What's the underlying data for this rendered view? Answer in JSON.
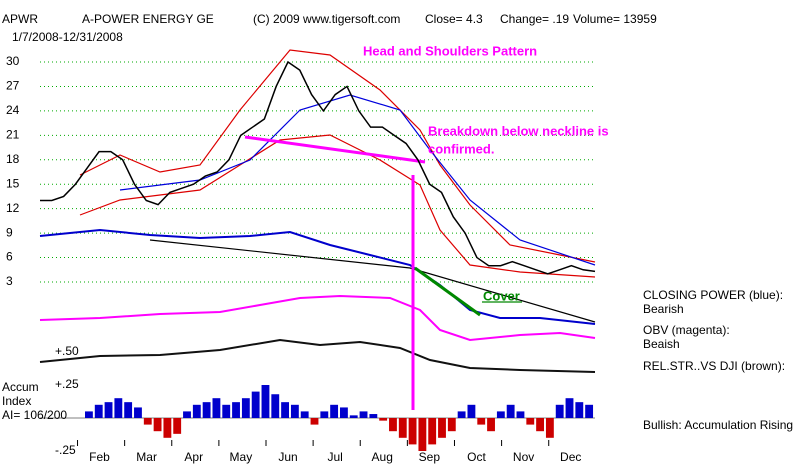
{
  "header": {
    "symbol": "APWR",
    "name": "A-POWER ENERGY GE",
    "copyright": "(C) 2009 www.tigersoft.com",
    "close": "Close=  4.3",
    "change": "Change= .19",
    "volume": "Volume= 13959",
    "period": "1/7/2008-12/31/2008"
  },
  "chart_data": [
    {
      "type": "line",
      "months": [
        "Feb",
        "Mar",
        "Apr",
        "May",
        "Jun",
        "Jul",
        "Aug",
        "Sep",
        "Oct",
        "Nov",
        "Dec"
      ],
      "series": [
        {
          "color": "#000000",
          "values": [
            13,
            13,
            13.5,
            15,
            17,
            19,
            19,
            18,
            15,
            13,
            12.5,
            14,
            14.5,
            15,
            16,
            16.5,
            18,
            21,
            22,
            23,
            27,
            30,
            29,
            26,
            24,
            26,
            27,
            24,
            22,
            22,
            21,
            20,
            18,
            15,
            14,
            11,
            9,
            6,
            5,
            5,
            5.5,
            5,
            4.5,
            4,
            4.5,
            5,
            4.5,
            4.3
          ]
        }
      ],
      "ylim": [
        3,
        30
      ],
      "yticks": [
        30,
        27,
        24,
        21,
        18,
        15,
        12,
        9,
        6,
        3
      ],
      "grid": true,
      "annotations": [
        "Head and Shoulders Pattern",
        "Breakdown below neckline is",
        "confirmed.",
        "Cover"
      ]
    },
    {
      "type": "bar",
      "label": [
        "Accum",
        "Index",
        "AI= 106/200"
      ],
      "series": [
        {
          "positive_color": "#0000cc",
          "negative_color": "#cc0000",
          "values": [
            0.05,
            0.1,
            0.12,
            0.15,
            0.12,
            0.08,
            -0.05,
            -0.1,
            -0.15,
            -0.12,
            0.05,
            0.1,
            0.12,
            0.15,
            0.1,
            0.12,
            0.15,
            0.2,
            0.25,
            0.18,
            0.12,
            0.1,
            0.05,
            -0.05,
            0.05,
            0.1,
            0.08,
            0.02,
            0.05,
            0.03,
            -0.02,
            -0.1,
            -0.15,
            -0.2,
            -0.25,
            -0.2,
            -0.15,
            -0.1,
            0.05,
            0.1,
            -0.05,
            -0.1,
            0.05,
            0.1,
            0.05,
            -0.05,
            -0.1,
            -0.15,
            0.1,
            0.15,
            0.12,
            0.1
          ]
        }
      ],
      "ylim": [
        -0.25,
        0.5
      ],
      "yticks": [
        {
          "value": 0.5,
          "label": "+.50"
        },
        {
          "value": 0.25,
          "label": "+.25"
        },
        {
          "value": -0.25,
          "label": "-.25"
        }
      ]
    }
  ],
  "notes": [
    "CLOSING POWER (blue):",
    "Bearish",
    "OBV (magenta):",
    "Beaish",
    "REL.STR..VS DJI (brown):",
    "Bullish: Accumulation Rising"
  ]
}
